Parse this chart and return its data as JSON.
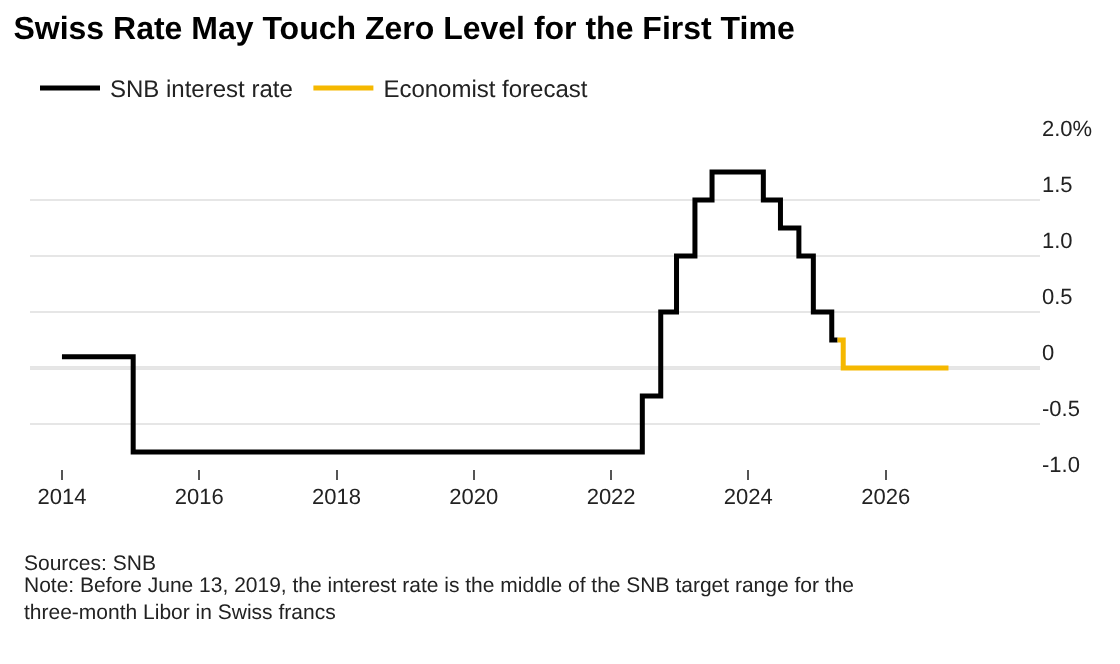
{
  "chart_data": {
    "type": "step",
    "title": "Swiss Rate May Touch Zero Level for the First Time",
    "series": [
      {
        "name": "SNB interest rate",
        "color": "#000000",
        "x": [
          "2014-01-01",
          "2014-12-31",
          "2015-01-15",
          "2022-06-16",
          "2022-09-22",
          "2022-12-15",
          "2023-03-23",
          "2023-06-22",
          "2024-03-21",
          "2024-06-20",
          "2024-09-26",
          "2024-12-12",
          "2025-03-20",
          "2025-04-20"
        ],
        "values": [
          0.1,
          0.1,
          -0.75,
          -0.25,
          0.5,
          1.0,
          1.5,
          1.75,
          1.5,
          1.25,
          1.0,
          0.5,
          0.25,
          0.25
        ]
      },
      {
        "name": "Economist forecast",
        "color": "#f5b800",
        "x": [
          "2025-04-20",
          "2025-05-20",
          "2026-12-01"
        ],
        "values": [
          0.25,
          0,
          0
        ]
      }
    ],
    "xlim": [
      "2013-07-15",
      "2028-04-01"
    ],
    "xticks": [
      "2014",
      "2016",
      "2018",
      "2020",
      "2022",
      "2024",
      "2026"
    ],
    "ylim": [
      -1.0,
      2.0
    ],
    "yticks": [
      {
        "value": 2.0,
        "label": "2.0%"
      },
      1.5,
      {
        "value": 1.0,
        "label": "1.0"
      },
      0.5,
      0,
      -0.5,
      {
        "value": -1.0,
        "label": "-1.0"
      }
    ],
    "grid": "y",
    "legend": "top left",
    "line_style": "solid",
    "marker": "none",
    "ref_lines": [
      {
        "axis": "y",
        "value": 0,
        "label": null,
        "color": "#999999"
      }
    ],
    "annotations": [
      "Sources: SNB",
      "Note: Before June 13, 2019, the interest rate is the middle of the SNB target range for the three-month Libor in Swiss francs"
    ]
  }
}
